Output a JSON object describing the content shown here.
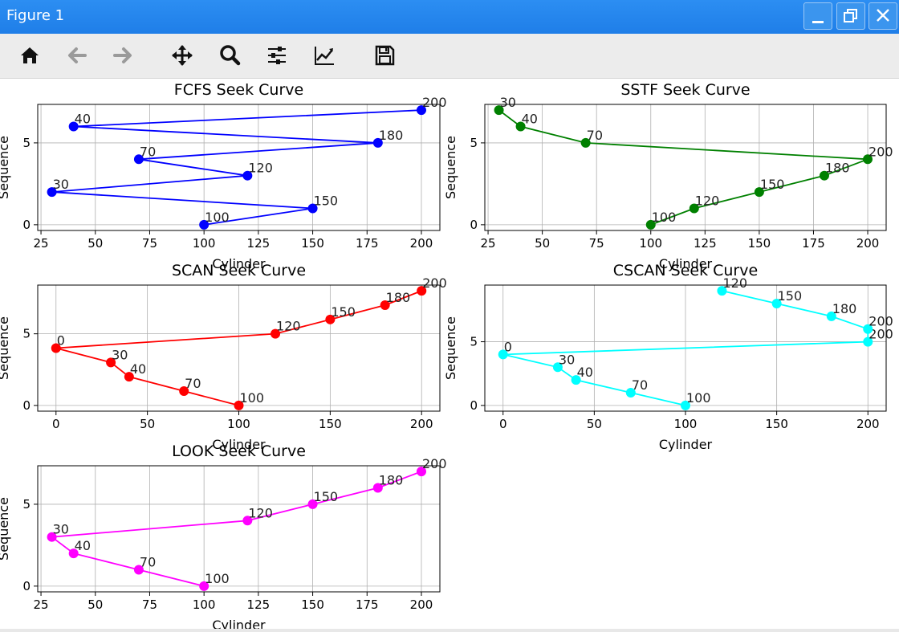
{
  "window": {
    "title": "Figure 1",
    "controls": [
      "minimize-icon",
      "restore-icon",
      "close-icon"
    ],
    "accent": "#1f7ee8"
  },
  "toolbar": {
    "tools": [
      "home-icon",
      "back-icon",
      "forward-icon",
      "pan-icon",
      "zoom-icon",
      "configure-subplots-icon",
      "edit-axis-icon",
      "save-icon"
    ]
  },
  "chart_data": [
    {
      "type": "line",
      "title": "FCFS Seek Curve",
      "xlabel": "Cylinder",
      "ylabel": "Sequence",
      "color": "#0000ff",
      "x": [
        100,
        150,
        30,
        120,
        70,
        180,
        40,
        200
      ],
      "y": [
        0,
        1,
        2,
        3,
        4,
        5,
        6,
        7
      ],
      "point_labels": [
        "100",
        "150",
        "30",
        "120",
        "70",
        "180",
        "40",
        "200"
      ],
      "xlim": [
        23.5,
        208.5
      ],
      "ylim": [
        -0.35,
        7.35
      ],
      "xticks": [
        25,
        50,
        75,
        100,
        125,
        150,
        175,
        200
      ],
      "yticks": [
        0,
        5
      ],
      "grid": true
    },
    {
      "type": "line",
      "title": "SSTF Seek Curve",
      "xlabel": "Cylinder",
      "ylabel": "Sequence",
      "color": "#008000",
      "x": [
        100,
        120,
        150,
        180,
        200,
        70,
        40,
        30
      ],
      "y": [
        0,
        1,
        2,
        3,
        4,
        5,
        6,
        7
      ],
      "point_labels": [
        "100",
        "120",
        "150",
        "180",
        "200",
        "70",
        "40",
        "30"
      ],
      "xlim": [
        23.5,
        208.5
      ],
      "ylim": [
        -0.35,
        7.35
      ],
      "xticks": [
        25,
        50,
        75,
        100,
        125,
        150,
        175,
        200
      ],
      "yticks": [
        0,
        5
      ],
      "grid": true
    },
    {
      "type": "line",
      "title": "SCAN Seek Curve",
      "xlabel": "Cylinder",
      "ylabel": "Sequence",
      "color": "#ff0000",
      "x": [
        100,
        70,
        40,
        30,
        0,
        120,
        150,
        180,
        200
      ],
      "y": [
        0,
        1,
        2,
        3,
        4,
        5,
        6,
        7,
        8
      ],
      "point_labels": [
        "100",
        "70",
        "40",
        "30",
        "0",
        "120",
        "150",
        "180",
        "200"
      ],
      "xlim": [
        -10,
        210
      ],
      "ylim": [
        -0.4,
        8.4
      ],
      "xticks": [
        0,
        50,
        100,
        150,
        200
      ],
      "yticks": [
        0,
        5
      ],
      "grid": true
    },
    {
      "type": "line",
      "title": "CSCAN Seek Curve",
      "xlabel": "Cylinder",
      "ylabel": "Sequence",
      "color": "#00ffff",
      "x": [
        100,
        70,
        40,
        30,
        0,
        200,
        200,
        180,
        150,
        120
      ],
      "y": [
        0,
        1,
        2,
        3,
        4,
        5,
        6,
        7,
        8,
        9
      ],
      "point_labels": [
        "100",
        "70",
        "40",
        "30",
        "0",
        "200",
        "200",
        "180",
        "150",
        "120"
      ],
      "xlim": [
        -10,
        210
      ],
      "ylim": [
        -0.45,
        9.45
      ],
      "xticks": [
        0,
        50,
        100,
        150,
        200
      ],
      "yticks": [
        0,
        5
      ],
      "grid": true
    },
    {
      "type": "line",
      "title": "LOOK Seek Curve",
      "xlabel": "Cylinder",
      "ylabel": "Sequence",
      "color": "#ff00ff",
      "x": [
        100,
        70,
        40,
        30,
        120,
        150,
        180,
        200
      ],
      "y": [
        0,
        1,
        2,
        3,
        4,
        5,
        6,
        7
      ],
      "point_labels": [
        "100",
        "70",
        "40",
        "30",
        "120",
        "150",
        "180",
        "200"
      ],
      "xlim": [
        23.5,
        208.5
      ],
      "ylim": [
        -0.35,
        7.35
      ],
      "xticks": [
        25,
        50,
        75,
        100,
        125,
        150,
        175,
        200
      ],
      "yticks": [
        0,
        5
      ],
      "grid": true
    }
  ]
}
